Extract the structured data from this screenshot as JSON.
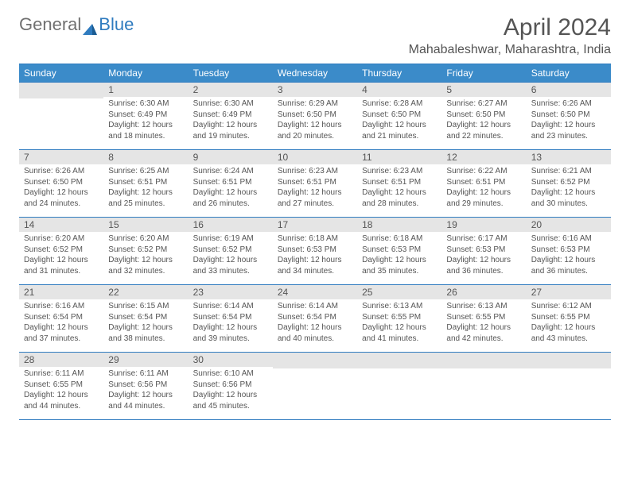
{
  "logo": {
    "text1": "General",
    "text2": "Blue"
  },
  "title": "April 2024",
  "location": "Mahabaleshwar, Maharashtra, India",
  "colors": {
    "header_bg": "#3b8bc9",
    "header_text": "#ffffff",
    "daynum_bg": "#e5e5e5",
    "border": "#2f7bbf",
    "text": "#555555",
    "logo_gray": "#707070",
    "logo_blue": "#2f7bbf"
  },
  "weekdays": [
    "Sunday",
    "Monday",
    "Tuesday",
    "Wednesday",
    "Thursday",
    "Friday",
    "Saturday"
  ],
  "weeks": [
    [
      {
        "n": "",
        "sr": "",
        "ss": "",
        "dl": ""
      },
      {
        "n": "1",
        "sr": "Sunrise: 6:30 AM",
        "ss": "Sunset: 6:49 PM",
        "dl": "Daylight: 12 hours and 18 minutes."
      },
      {
        "n": "2",
        "sr": "Sunrise: 6:30 AM",
        "ss": "Sunset: 6:49 PM",
        "dl": "Daylight: 12 hours and 19 minutes."
      },
      {
        "n": "3",
        "sr": "Sunrise: 6:29 AM",
        "ss": "Sunset: 6:50 PM",
        "dl": "Daylight: 12 hours and 20 minutes."
      },
      {
        "n": "4",
        "sr": "Sunrise: 6:28 AM",
        "ss": "Sunset: 6:50 PM",
        "dl": "Daylight: 12 hours and 21 minutes."
      },
      {
        "n": "5",
        "sr": "Sunrise: 6:27 AM",
        "ss": "Sunset: 6:50 PM",
        "dl": "Daylight: 12 hours and 22 minutes."
      },
      {
        "n": "6",
        "sr": "Sunrise: 6:26 AM",
        "ss": "Sunset: 6:50 PM",
        "dl": "Daylight: 12 hours and 23 minutes."
      }
    ],
    [
      {
        "n": "7",
        "sr": "Sunrise: 6:26 AM",
        "ss": "Sunset: 6:50 PM",
        "dl": "Daylight: 12 hours and 24 minutes."
      },
      {
        "n": "8",
        "sr": "Sunrise: 6:25 AM",
        "ss": "Sunset: 6:51 PM",
        "dl": "Daylight: 12 hours and 25 minutes."
      },
      {
        "n": "9",
        "sr": "Sunrise: 6:24 AM",
        "ss": "Sunset: 6:51 PM",
        "dl": "Daylight: 12 hours and 26 minutes."
      },
      {
        "n": "10",
        "sr": "Sunrise: 6:23 AM",
        "ss": "Sunset: 6:51 PM",
        "dl": "Daylight: 12 hours and 27 minutes."
      },
      {
        "n": "11",
        "sr": "Sunrise: 6:23 AM",
        "ss": "Sunset: 6:51 PM",
        "dl": "Daylight: 12 hours and 28 minutes."
      },
      {
        "n": "12",
        "sr": "Sunrise: 6:22 AM",
        "ss": "Sunset: 6:51 PM",
        "dl": "Daylight: 12 hours and 29 minutes."
      },
      {
        "n": "13",
        "sr": "Sunrise: 6:21 AM",
        "ss": "Sunset: 6:52 PM",
        "dl": "Daylight: 12 hours and 30 minutes."
      }
    ],
    [
      {
        "n": "14",
        "sr": "Sunrise: 6:20 AM",
        "ss": "Sunset: 6:52 PM",
        "dl": "Daylight: 12 hours and 31 minutes."
      },
      {
        "n": "15",
        "sr": "Sunrise: 6:20 AM",
        "ss": "Sunset: 6:52 PM",
        "dl": "Daylight: 12 hours and 32 minutes."
      },
      {
        "n": "16",
        "sr": "Sunrise: 6:19 AM",
        "ss": "Sunset: 6:52 PM",
        "dl": "Daylight: 12 hours and 33 minutes."
      },
      {
        "n": "17",
        "sr": "Sunrise: 6:18 AM",
        "ss": "Sunset: 6:53 PM",
        "dl": "Daylight: 12 hours and 34 minutes."
      },
      {
        "n": "18",
        "sr": "Sunrise: 6:18 AM",
        "ss": "Sunset: 6:53 PM",
        "dl": "Daylight: 12 hours and 35 minutes."
      },
      {
        "n": "19",
        "sr": "Sunrise: 6:17 AM",
        "ss": "Sunset: 6:53 PM",
        "dl": "Daylight: 12 hours and 36 minutes."
      },
      {
        "n": "20",
        "sr": "Sunrise: 6:16 AM",
        "ss": "Sunset: 6:53 PM",
        "dl": "Daylight: 12 hours and 36 minutes."
      }
    ],
    [
      {
        "n": "21",
        "sr": "Sunrise: 6:16 AM",
        "ss": "Sunset: 6:54 PM",
        "dl": "Daylight: 12 hours and 37 minutes."
      },
      {
        "n": "22",
        "sr": "Sunrise: 6:15 AM",
        "ss": "Sunset: 6:54 PM",
        "dl": "Daylight: 12 hours and 38 minutes."
      },
      {
        "n": "23",
        "sr": "Sunrise: 6:14 AM",
        "ss": "Sunset: 6:54 PM",
        "dl": "Daylight: 12 hours and 39 minutes."
      },
      {
        "n": "24",
        "sr": "Sunrise: 6:14 AM",
        "ss": "Sunset: 6:54 PM",
        "dl": "Daylight: 12 hours and 40 minutes."
      },
      {
        "n": "25",
        "sr": "Sunrise: 6:13 AM",
        "ss": "Sunset: 6:55 PM",
        "dl": "Daylight: 12 hours and 41 minutes."
      },
      {
        "n": "26",
        "sr": "Sunrise: 6:13 AM",
        "ss": "Sunset: 6:55 PM",
        "dl": "Daylight: 12 hours and 42 minutes."
      },
      {
        "n": "27",
        "sr": "Sunrise: 6:12 AM",
        "ss": "Sunset: 6:55 PM",
        "dl": "Daylight: 12 hours and 43 minutes."
      }
    ],
    [
      {
        "n": "28",
        "sr": "Sunrise: 6:11 AM",
        "ss": "Sunset: 6:55 PM",
        "dl": "Daylight: 12 hours and 44 minutes."
      },
      {
        "n": "29",
        "sr": "Sunrise: 6:11 AM",
        "ss": "Sunset: 6:56 PM",
        "dl": "Daylight: 12 hours and 44 minutes."
      },
      {
        "n": "30",
        "sr": "Sunrise: 6:10 AM",
        "ss": "Sunset: 6:56 PM",
        "dl": "Daylight: 12 hours and 45 minutes."
      },
      {
        "n": "",
        "sr": "",
        "ss": "",
        "dl": ""
      },
      {
        "n": "",
        "sr": "",
        "ss": "",
        "dl": ""
      },
      {
        "n": "",
        "sr": "",
        "ss": "",
        "dl": ""
      },
      {
        "n": "",
        "sr": "",
        "ss": "",
        "dl": ""
      }
    ]
  ]
}
